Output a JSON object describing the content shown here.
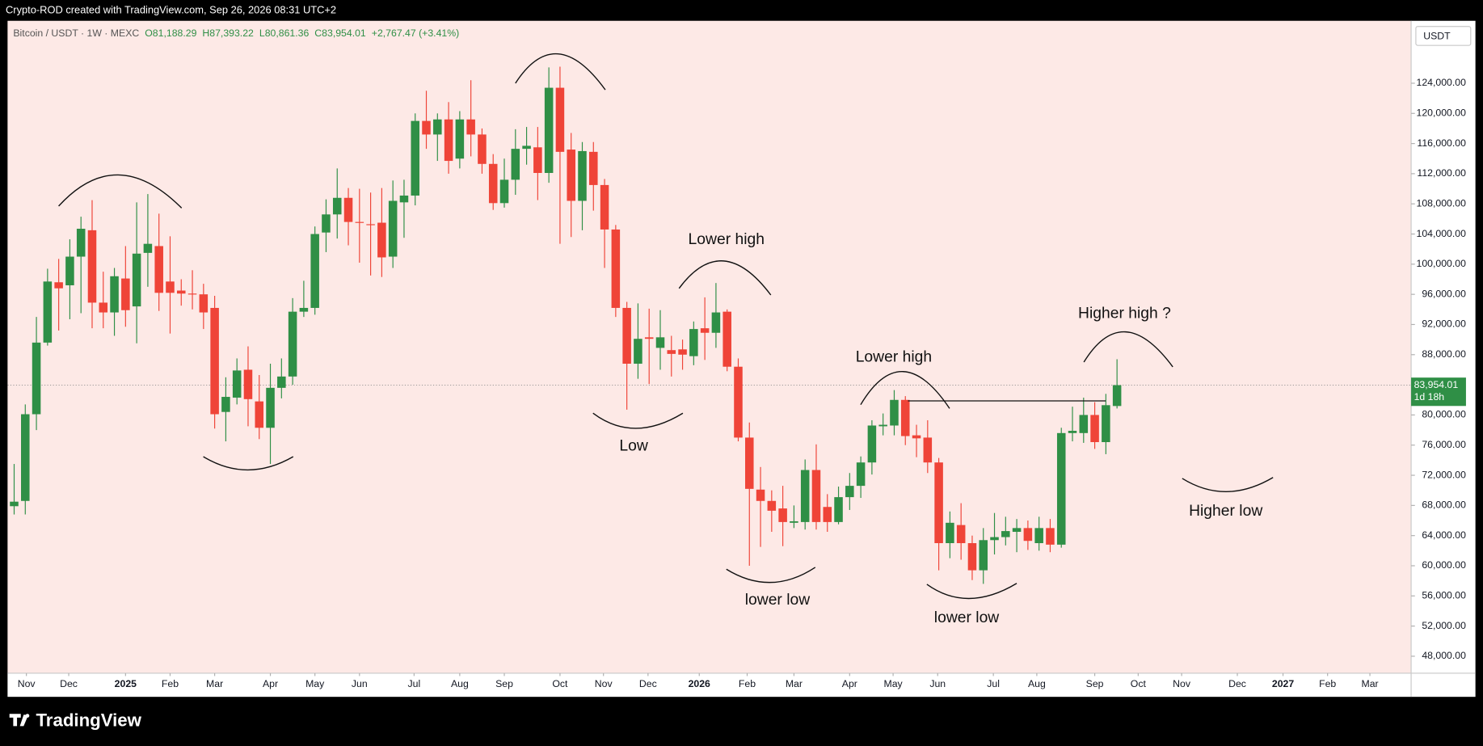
{
  "attribution": "Crypto-ROD created with TradingView.com, Sep 26, 2026 08:31 UTC+2",
  "logo": "TradingView",
  "chart_data": {
    "type": "candlestick",
    "title": "Bitcoin / USDT · 1W · MEXC",
    "legend": {
      "open": "O81,188.29",
      "high": "H87,393.22",
      "low": "L80,861.36",
      "close": "C83,954.01",
      "change": "+2,767.47 (+3.41%)"
    },
    "currency": "USDT",
    "last_price": {
      "value": 83954.01,
      "label": "83,954.01"
    },
    "countdown": "1d 18h",
    "up_color": "#2f8f46",
    "down_color": "#ef4438",
    "grid": false,
    "open": [
      67900,
      68600,
      80100,
      89600,
      97600,
      97200,
      101000,
      104500,
      94900,
      93600,
      98100,
      94400,
      101500,
      102400,
      97700,
      96500,
      96100,
      96000,
      94200,
      80400,
      82300,
      86000,
      81800,
      78300,
      83600,
      85100,
      93700,
      94200,
      104200,
      106600,
      108800,
      105600,
      105300,
      105500,
      101000,
      108200,
      109100,
      119000,
      117200,
      119200,
      114000,
      119200,
      117200,
      113300,
      108100,
      111200,
      115300,
      115500,
      112100,
      123400,
      115200,
      108400,
      114900,
      110500,
      104600,
      94200,
      86800,
      90300,
      88900,
      88600,
      88700,
      87800,
      91500,
      90900,
      93700,
      86400,
      77000,
      70100,
      68600,
      67600,
      65700,
      65800,
      72700,
      67800,
      65800,
      69100,
      70600,
      73700,
      78500,
      78600,
      82000,
      77300,
      77000,
      73700,
      63000,
      65400,
      63000,
      59400,
      63400,
      63800,
      64500,
      65000,
      63000,
      65000,
      62800,
      77600,
      77600,
      80000,
      76400,
      81188.29
    ],
    "high": [
      73500,
      81400,
      93000,
      99400,
      100700,
      103300,
      106300,
      108500,
      99000,
      99500,
      102400,
      108200,
      109300,
      106700,
      103700,
      98000,
      99200,
      97400,
      95800,
      85000,
      87500,
      89100,
      85300,
      86800,
      87500,
      95500,
      97800,
      105000,
      108600,
      112700,
      110100,
      110000,
      109500,
      110100,
      111100,
      111200,
      120000,
      123000,
      120000,
      121500,
      120300,
      124400,
      118000,
      114600,
      114000,
      117900,
      118200,
      118200,
      126100,
      126200,
      117400,
      116200,
      116200,
      111300,
      105200,
      95000,
      94800,
      94100,
      93900,
      90500,
      90000,
      92400,
      95600,
      97500,
      94000,
      87500,
      79000,
      73100,
      70000,
      70600,
      68000,
      74100,
      76100,
      69500,
      70500,
      72300,
      74500,
      79300,
      80200,
      83300,
      82500,
      78700,
      79300,
      74300,
      67200,
      68300,
      64000,
      65000,
      67000,
      66500,
      66200,
      66000,
      66500,
      66200,
      78300,
      81100,
      82300,
      81700,
      82800,
      87393.22
    ],
    "low": [
      66800,
      66800,
      78000,
      89200,
      91200,
      92700,
      93500,
      91500,
      91500,
      90500,
      91700,
      89500,
      97000,
      93800,
      90800,
      94500,
      94000,
      91400,
      78200,
      76500,
      81400,
      78500,
      76800,
      73500,
      82200,
      84000,
      93000,
      93300,
      101600,
      103400,
      102500,
      100200,
      98500,
      98300,
      99500,
      103500,
      107800,
      115300,
      113700,
      112000,
      112700,
      114300,
      112000,
      107200,
      107500,
      109200,
      113200,
      108500,
      110800,
      102700,
      103600,
      104500,
      107100,
      99500,
      93000,
      80700,
      84800,
      84100,
      86000,
      85100,
      86000,
      86600,
      87300,
      88900,
      85800,
      76500,
      60000,
      62500,
      64500,
      62600,
      65000,
      64800,
      64800,
      64500,
      65500,
      67400,
      69000,
      72100,
      77300,
      77300,
      76000,
      74400,
      72300,
      59400,
      61000,
      60800,
      58100,
      57600,
      61500,
      62700,
      61800,
      62100,
      62000,
      61800,
      62400,
      76500,
      76300,
      75500,
      74800,
      80861.36
    ],
    "close": [
      68500,
      80100,
      89600,
      97700,
      96800,
      101000,
      104700,
      94900,
      93600,
      98400,
      93900,
      101400,
      102700,
      96200,
      96200,
      96100,
      96000,
      93600,
      80100,
      82400,
      85900,
      82100,
      78300,
      83600,
      85100,
      93700,
      94200,
      104000,
      106600,
      108800,
      105600,
      105500,
      105200,
      100900,
      108400,
      109100,
      119000,
      117200,
      119200,
      113700,
      119200,
      117200,
      113300,
      108100,
      111200,
      115300,
      115700,
      112100,
      123400,
      114900,
      108400,
      115000,
      110500,
      104600,
      94200,
      86800,
      90100,
      90100,
      90300,
      88100,
      88000,
      91400,
      90900,
      93600,
      86400,
      77000,
      70200,
      68600,
      67300,
      65800,
      65900,
      72700,
      65800,
      65800,
      69100,
      70600,
      73700,
      78600,
      78700,
      82000,
      77200,
      76900,
      73700,
      63000,
      65700,
      63000,
      59400,
      63400,
      63800,
      64600,
      65000,
      63300,
      65000,
      62800,
      77600,
      77900,
      80000,
      76400,
      81300,
      83954.01
    ],
    "xlim": [
      -0.59,
      125.4
    ],
    "xticks": [
      {
        "value": 1.1,
        "label": "Nov"
      },
      {
        "value": 4.9,
        "label": "Dec"
      },
      {
        "value": 10.0,
        "label": "2025"
      },
      {
        "value": 14.0,
        "label": "Feb"
      },
      {
        "value": 18.0,
        "label": "Mar"
      },
      {
        "value": 23.0,
        "label": "Apr"
      },
      {
        "value": 27.0,
        "label": "May"
      },
      {
        "value": 31.0,
        "label": "Jun"
      },
      {
        "value": 35.9,
        "label": "Jul"
      },
      {
        "value": 40.0,
        "label": "Aug"
      },
      {
        "value": 44.0,
        "label": "Sep"
      },
      {
        "value": 49.0,
        "label": "Oct"
      },
      {
        "value": 52.9,
        "label": "Nov"
      },
      {
        "value": 56.9,
        "label": "Dec"
      },
      {
        "value": 61.5,
        "label": "2026"
      },
      {
        "value": 65.8,
        "label": "Feb"
      },
      {
        "value": 70.0,
        "label": "Mar"
      },
      {
        "value": 75.0,
        "label": "Apr"
      },
      {
        "value": 78.9,
        "label": "May"
      },
      {
        "value": 82.9,
        "label": "Jun"
      },
      {
        "value": 87.9,
        "label": "Jul"
      },
      {
        "value": 91.8,
        "label": "Aug"
      },
      {
        "value": 97.0,
        "label": "Sep"
      },
      {
        "value": 100.9,
        "label": "Oct"
      },
      {
        "value": 104.8,
        "label": "Nov"
      },
      {
        "value": 109.8,
        "label": "Dec"
      },
      {
        "value": 113.9,
        "label": "2027"
      },
      {
        "value": 117.9,
        "label": "Feb"
      },
      {
        "value": 121.7,
        "label": "Mar"
      }
    ],
    "ylim": [
      45750,
      132280
    ],
    "yticks": [
      {
        "value": 48000,
        "label": "48,000.00"
      },
      {
        "value": 52000,
        "label": "52,000.00"
      },
      {
        "value": 56000,
        "label": "56,000.00"
      },
      {
        "value": 60000,
        "label": "60,000.00"
      },
      {
        "value": 64000,
        "label": "64,000.00"
      },
      {
        "value": 68000,
        "label": "68,000.00"
      },
      {
        "value": 72000,
        "label": "72,000.00"
      },
      {
        "value": 76000,
        "label": "76,000.00"
      },
      {
        "value": 80000,
        "label": "80,000.00"
      },
      {
        "value": 84000,
        "label": "84,000.00"
      },
      {
        "value": 88000,
        "label": "88,000.00"
      },
      {
        "value": 92000,
        "label": "92,000.00"
      },
      {
        "value": 96000,
        "label": "96,000.00"
      },
      {
        "value": 100000,
        "label": "100,000.00"
      },
      {
        "value": 104000,
        "label": "104,000.00"
      },
      {
        "value": 108000,
        "label": "108,000.00"
      },
      {
        "value": 112000,
        "label": "112,000.00"
      },
      {
        "value": 116000,
        "label": "116,000.00"
      },
      {
        "value": 120000,
        "label": "120,000.00"
      },
      {
        "value": 124000,
        "label": "124,000.00"
      }
    ],
    "annotations": [
      "Lower high",
      "Low",
      "lower low",
      "Lower high",
      "lower low",
      "Higher high ?",
      "Higher low"
    ]
  }
}
